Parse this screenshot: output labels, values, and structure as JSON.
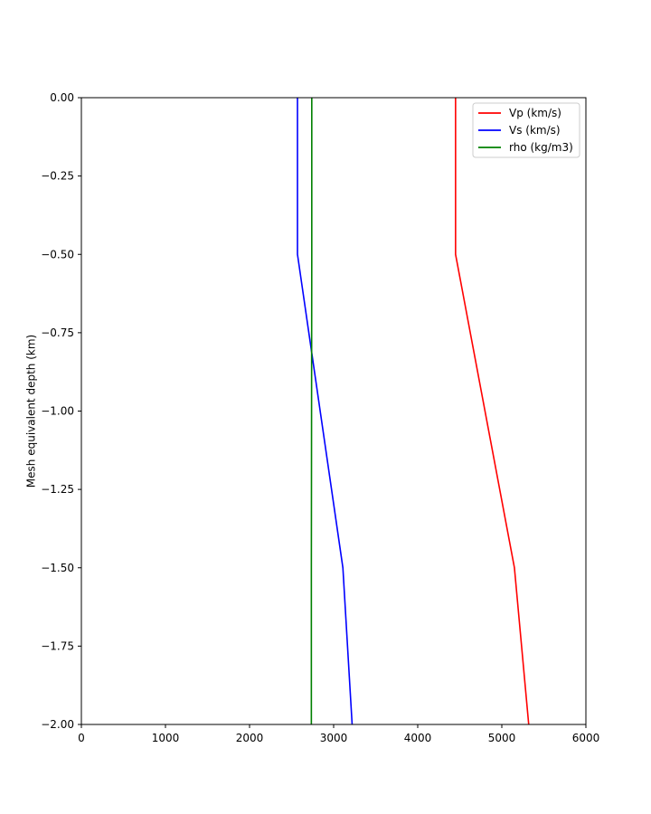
{
  "chart_data": {
    "type": "line",
    "title": "",
    "xlabel": "",
    "ylabel": "Mesh equivalent depth (km)",
    "xlim": [
      0,
      6000
    ],
    "ylim": [
      -2.0,
      0.0
    ],
    "xticks": [
      0,
      1000,
      2000,
      3000,
      4000,
      5000,
      6000
    ],
    "xtick_labels": [
      "0",
      "1000",
      "2000",
      "3000",
      "4000",
      "5000",
      "6000"
    ],
    "yticks": [
      0.0,
      -0.25,
      -0.5,
      -0.75,
      -1.0,
      -1.25,
      -1.5,
      -1.75,
      -2.0
    ],
    "ytick_labels": [
      "0.00",
      "−0.25",
      "−0.50",
      "−0.75",
      "−1.00",
      "−1.25",
      "−1.50",
      "−1.75",
      "−2.00"
    ],
    "grid": false,
    "legend_position": "top-right",
    "series": [
      {
        "name": "Vp (km/s)",
        "color": "#ff0000",
        "points": [
          [
            4450,
            0.0
          ],
          [
            4450,
            -0.5
          ],
          [
            5150,
            -1.5
          ],
          [
            5320,
            -2.0
          ]
        ]
      },
      {
        "name": "Vs (km/s)",
        "color": "#0000ff",
        "points": [
          [
            2570,
            0.0
          ],
          [
            2570,
            -0.5
          ],
          [
            3110,
            -1.5
          ],
          [
            3220,
            -2.0
          ]
        ]
      },
      {
        "name": "rho (kg/m3)",
        "color": "#008000",
        "points": [
          [
            2740,
            0.0
          ],
          [
            2740,
            -0.5
          ],
          [
            2735,
            -1.5
          ],
          [
            2735,
            -2.0
          ]
        ]
      }
    ]
  }
}
